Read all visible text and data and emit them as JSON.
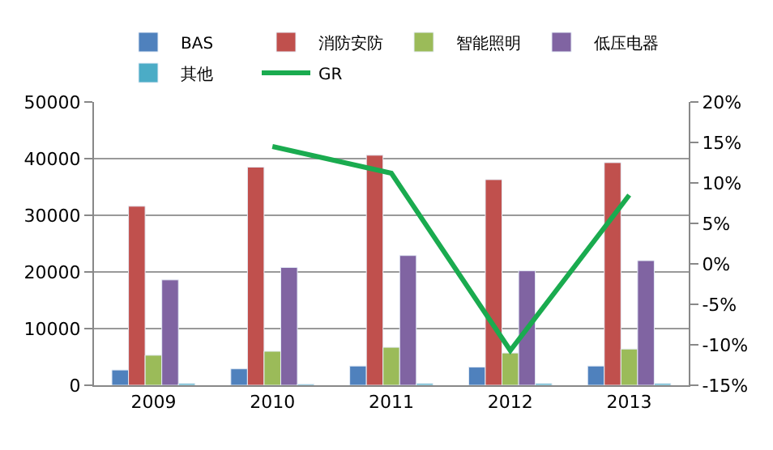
{
  "chart_data": {
    "type": "bar",
    "categories": [
      "2009",
      "2010",
      "2011",
      "2012",
      "2013"
    ],
    "series": [
      {
        "name": "BAS",
        "color": "#4f81bd",
        "values": [
          2700,
          2900,
          3400,
          3200,
          3400
        ]
      },
      {
        "name": "消防安防",
        "color": "#c0504d",
        "values": [
          31600,
          38500,
          40600,
          36300,
          39300
        ]
      },
      {
        "name": "智能照明",
        "color": "#9bbb59",
        "values": [
          5300,
          6000,
          6700,
          5700,
          6400
        ]
      },
      {
        "name": "低压电器",
        "color": "#8064a2",
        "values": [
          18600,
          20800,
          22900,
          20200,
          22000
        ]
      },
      {
        "name": "其他",
        "color": "#4bacc6",
        "values": [
          300,
          200,
          300,
          300,
          300
        ]
      },
      {
        "name": "GR",
        "type": "line",
        "axis": "y2",
        "color": "#1aab4f",
        "values": [
          null,
          14.5,
          11.2,
          -10.7,
          8.5
        ]
      }
    ],
    "ylim": [
      0,
      50000
    ],
    "yticks": [
      0,
      10000,
      20000,
      30000,
      40000,
      50000
    ],
    "y2lim": [
      -15,
      20
    ],
    "y2ticks": [
      {
        "value": -15,
        "label": "-15%"
      },
      {
        "value": -10,
        "label": "-10%"
      },
      {
        "value": -5,
        "label": "-5%"
      },
      {
        "value": 0,
        "label": "0%"
      },
      {
        "value": 5,
        "label": "5%"
      },
      {
        "value": 10,
        "label": "10%"
      },
      {
        "value": 15,
        "label": "15%"
      },
      {
        "value": 20,
        "label": "20%"
      }
    ],
    "grid": "y",
    "legend": "top",
    "marker": "none"
  }
}
